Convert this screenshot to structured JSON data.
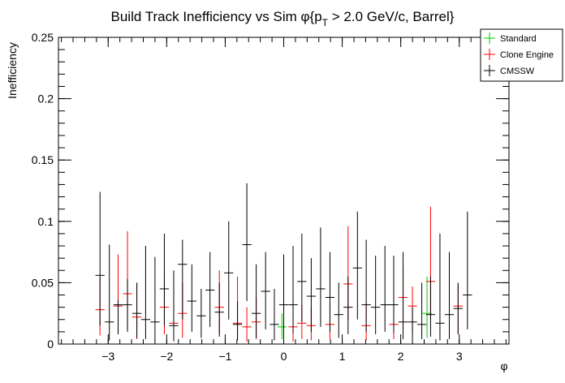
{
  "chart_data": {
    "type": "scatter",
    "title": "Build Track Inefficiency vs Sim φ{p_{T} > 2.0 GeV/c, Barrel}",
    "title_parts": {
      "main": "Build Track Inefficiency vs Sim φ{p",
      "sub": "T",
      "tail": " > 2.0 GeV/c, Barrel}"
    },
    "xlabel": "φ",
    "ylabel": "Inefficiency",
    "xlim": [
      -3.85,
      3.85
    ],
    "ylim": [
      0,
      0.25
    ],
    "x_ticks": [
      -3,
      -2,
      -1,
      0,
      1,
      2,
      3
    ],
    "x_tick_labels": [
      "−3",
      "−2",
      "−1",
      "0",
      "1",
      "2",
      "3"
    ],
    "y_ticks": [
      0,
      0.05,
      0.1,
      0.15,
      0.2,
      0.25
    ],
    "y_tick_labels": [
      "0",
      "0.05",
      "0.1",
      "0.15",
      "0.2",
      "0.25"
    ],
    "legend_placement": "top-right",
    "bin_half_width": 0.0785,
    "series": [
      {
        "name": "Standard",
        "color": "#00cc00",
        "points": [
          {
            "x": -0.03,
            "y": 0.014,
            "lo": 0.004,
            "hi": 0.025
          },
          {
            "x": 2.45,
            "y": 0.025,
            "lo": 0.005,
            "hi": 0.055
          }
        ]
      },
      {
        "name": "Clone Engine",
        "color": "#ff0000",
        "points": [
          {
            "x": -3.14,
            "y": 0.028,
            "lo": 0.007,
            "hi": 0.055
          },
          {
            "x": -2.83,
            "y": 0.031,
            "lo": 0.008,
            "hi": 0.073
          },
          {
            "x": -2.67,
            "y": 0.041,
            "lo": 0.012,
            "hi": 0.092
          },
          {
            "x": -2.51,
            "y": 0.022,
            "lo": 0.004,
            "hi": 0.05
          },
          {
            "x": -2.04,
            "y": 0.03,
            "lo": 0.008,
            "hi": 0.057
          },
          {
            "x": -1.88,
            "y": 0.017,
            "lo": 0.002,
            "hi": 0.04
          },
          {
            "x": -1.73,
            "y": 0.025,
            "lo": 0.005,
            "hi": 0.05
          },
          {
            "x": -1.1,
            "y": 0.03,
            "lo": 0.008,
            "hi": 0.06
          },
          {
            "x": -0.79,
            "y": 0.017,
            "lo": 0.004,
            "hi": 0.055
          },
          {
            "x": -0.63,
            "y": 0.014,
            "lo": 0.002,
            "hi": 0.03
          },
          {
            "x": -0.47,
            "y": 0.018,
            "lo": 0.004,
            "hi": 0.038
          },
          {
            "x": 0.16,
            "y": 0.014,
            "lo": 0.002,
            "hi": 0.034
          },
          {
            "x": 0.31,
            "y": 0.017,
            "lo": 0.004,
            "hi": 0.032
          },
          {
            "x": 0.47,
            "y": 0.015,
            "lo": 0.003,
            "hi": 0.03
          },
          {
            "x": 0.79,
            "y": 0.016,
            "lo": 0.004,
            "hi": 0.033
          },
          {
            "x": 1.1,
            "y": 0.049,
            "lo": 0.02,
            "hi": 0.096
          },
          {
            "x": 1.41,
            "y": 0.015,
            "lo": 0.003,
            "hi": 0.034
          },
          {
            "x": 1.88,
            "y": 0.016,
            "lo": 0.004,
            "hi": 0.034
          },
          {
            "x": 2.04,
            "y": 0.038,
            "lo": 0.013,
            "hi": 0.063
          },
          {
            "x": 2.2,
            "y": 0.031,
            "lo": 0.009,
            "hi": 0.047
          },
          {
            "x": 2.51,
            "y": 0.051,
            "lo": 0.02,
            "hi": 0.112
          },
          {
            "x": 2.98,
            "y": 0.031,
            "lo": 0.008,
            "hi": 0.048
          }
        ]
      },
      {
        "name": "CMSSW",
        "color": "#000000",
        "points": [
          {
            "x": -3.14,
            "y": 0.056,
            "lo": 0.015,
            "hi": 0.124
          },
          {
            "x": -2.98,
            "y": 0.018,
            "lo": 0.003,
            "hi": 0.081
          },
          {
            "x": -2.83,
            "y": 0.032,
            "lo": 0.008,
            "hi": 0.036
          },
          {
            "x": -2.67,
            "y": 0.032,
            "lo": 0.01,
            "hi": 0.053
          },
          {
            "x": -2.51,
            "y": 0.025,
            "lo": 0.005,
            "hi": 0.05
          },
          {
            "x": -2.36,
            "y": 0.02,
            "lo": 0.004,
            "hi": 0.08
          },
          {
            "x": -2.2,
            "y": 0.018,
            "lo": 0.003,
            "hi": 0.071
          },
          {
            "x": -2.04,
            "y": 0.045,
            "lo": 0.015,
            "hi": 0.09
          },
          {
            "x": -1.88,
            "y": 0.015,
            "lo": 0.003,
            "hi": 0.06
          },
          {
            "x": -1.73,
            "y": 0.065,
            "lo": 0.02,
            "hi": 0.085
          },
          {
            "x": -1.57,
            "y": 0.035,
            "lo": 0.01,
            "hi": 0.065
          },
          {
            "x": -1.41,
            "y": 0.023,
            "lo": 0.005,
            "hi": 0.045
          },
          {
            "x": -1.26,
            "y": 0.044,
            "lo": 0.014,
            "hi": 0.075
          },
          {
            "x": -1.1,
            "y": 0.026,
            "lo": 0.006,
            "hi": 0.05
          },
          {
            "x": -0.94,
            "y": 0.058,
            "lo": 0.02,
            "hi": 0.1
          },
          {
            "x": -0.79,
            "y": 0.016,
            "lo": 0.003,
            "hi": 0.035
          },
          {
            "x": -0.63,
            "y": 0.081,
            "lo": 0.035,
            "hi": 0.131
          },
          {
            "x": -0.47,
            "y": 0.025,
            "lo": 0.005,
            "hi": 0.065
          },
          {
            "x": -0.31,
            "y": 0.043,
            "lo": 0.012,
            "hi": 0.075
          },
          {
            "x": -0.16,
            "y": 0.016,
            "lo": 0.003,
            "hi": 0.045
          },
          {
            "x": 0.0,
            "y": 0.032,
            "lo": 0.008,
            "hi": 0.073
          },
          {
            "x": 0.16,
            "y": 0.032,
            "lo": 0.009,
            "hi": 0.08
          },
          {
            "x": 0.31,
            "y": 0.051,
            "lo": 0.018,
            "hi": 0.09
          },
          {
            "x": 0.47,
            "y": 0.039,
            "lo": 0.01,
            "hi": 0.07
          },
          {
            "x": 0.63,
            "y": 0.045,
            "lo": 0.014,
            "hi": 0.095
          },
          {
            "x": 0.79,
            "y": 0.038,
            "lo": 0.01,
            "hi": 0.075
          },
          {
            "x": 0.94,
            "y": 0.024,
            "lo": 0.005,
            "hi": 0.05
          },
          {
            "x": 1.1,
            "y": 0.03,
            "lo": 0.008,
            "hi": 0.055
          },
          {
            "x": 1.26,
            "y": 0.062,
            "lo": 0.02,
            "hi": 0.108
          },
          {
            "x": 1.41,
            "y": 0.032,
            "lo": 0.01,
            "hi": 0.085
          },
          {
            "x": 1.57,
            "y": 0.03,
            "lo": 0.008,
            "hi": 0.072
          },
          {
            "x": 1.73,
            "y": 0.032,
            "lo": 0.01,
            "hi": 0.08
          },
          {
            "x": 1.88,
            "y": 0.032,
            "lo": 0.009,
            "hi": 0.072
          },
          {
            "x": 2.04,
            "y": 0.018,
            "lo": 0.004,
            "hi": 0.075
          },
          {
            "x": 2.2,
            "y": 0.018,
            "lo": 0.004,
            "hi": 0.03
          },
          {
            "x": 2.36,
            "y": 0.016,
            "lo": 0.004,
            "hi": 0.05
          },
          {
            "x": 2.51,
            "y": 0.024,
            "lo": 0.006,
            "hi": 0.055
          },
          {
            "x": 2.67,
            "y": 0.017,
            "lo": 0.003,
            "hi": 0.09
          },
          {
            "x": 2.83,
            "y": 0.024,
            "lo": 0.004,
            "hi": 0.075
          },
          {
            "x": 2.98,
            "y": 0.029,
            "lo": 0.008,
            "hi": 0.05
          },
          {
            "x": 3.14,
            "y": 0.04,
            "lo": 0.012,
            "hi": 0.108
          }
        ]
      }
    ]
  }
}
